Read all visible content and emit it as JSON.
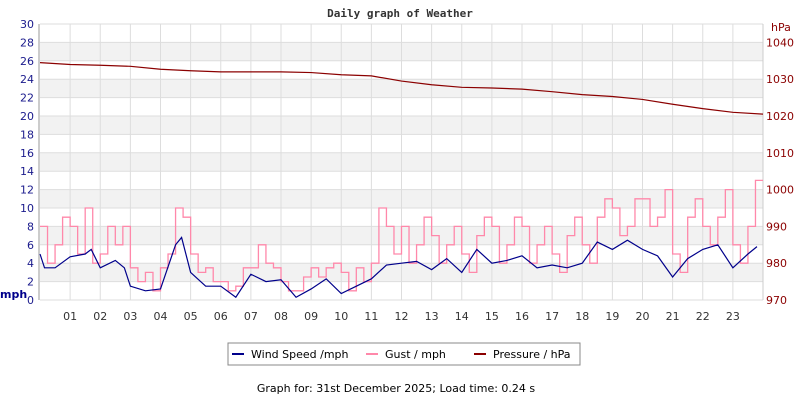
{
  "chart_data": {
    "type": "line",
    "title": "Daily graph of Weather",
    "xlabel": "",
    "x_ticks": [
      "01",
      "02",
      "03",
      "04",
      "05",
      "06",
      "07",
      "08",
      "09",
      "10",
      "11",
      "12",
      "13",
      "14",
      "15",
      "16",
      "17",
      "18",
      "19",
      "20",
      "21",
      "22",
      "23"
    ],
    "xlim": [
      0,
      24
    ],
    "y_left": {
      "label": "mph",
      "lim": [
        0,
        30
      ],
      "ticks": [
        0,
        2,
        4,
        6,
        8,
        10,
        12,
        14,
        16,
        18,
        20,
        22,
        24,
        26,
        28,
        30
      ]
    },
    "y_right": {
      "label": "hPa",
      "lim": [
        970,
        1045
      ],
      "ticks": [
        970,
        980,
        990,
        1000,
        1010,
        1020,
        1030,
        1040
      ]
    },
    "grid": true,
    "legend_position": "bottom",
    "series": [
      {
        "name": "Wind Speed /mph",
        "axis": "left",
        "color": "#00008b",
        "x": [
          0,
          0.15,
          0.5,
          1,
          1.5,
          1.7,
          2,
          2.5,
          2.8,
          3,
          3.5,
          4,
          4.5,
          4.7,
          5,
          5.5,
          6,
          6.5,
          7,
          7.5,
          8,
          8.5,
          9,
          9.5,
          10,
          10.5,
          11,
          11.5,
          12,
          12.5,
          13,
          13.5,
          14,
          14.5,
          15,
          15.5,
          16,
          16.5,
          17,
          17.5,
          18,
          18.5,
          19,
          19.5,
          20,
          20.5,
          21,
          21.5,
          22,
          22.5,
          23,
          23.5,
          23.8
        ],
        "y": [
          5,
          3.5,
          3.5,
          4.7,
          5,
          5.5,
          3.5,
          4.3,
          3.5,
          1.5,
          1,
          1.2,
          6,
          6.8,
          3,
          1.5,
          1.5,
          0.3,
          2.8,
          2,
          2.2,
          0.3,
          1.2,
          2.3,
          0.7,
          1.5,
          2.3,
          3.8,
          4,
          4.2,
          3.3,
          4.5,
          3,
          5.5,
          4,
          4.3,
          4.8,
          3.5,
          3.8,
          3.5,
          4,
          6.3,
          5.5,
          6.5,
          5.5,
          4.8,
          2.5,
          4.5,
          5.5,
          6,
          3.5,
          5,
          5.8
        ]
      },
      {
        "name": "Gust / mph",
        "axis": "left",
        "color": "#ff88aa",
        "x": [
          0,
          0.25,
          0.5,
          0.75,
          1,
          1.25,
          1.5,
          1.75,
          2,
          2.25,
          2.5,
          2.75,
          3,
          3.25,
          3.5,
          3.75,
          4,
          4.25,
          4.5,
          4.75,
          5,
          5.25,
          5.5,
          5.75,
          6,
          6.25,
          6.5,
          6.75,
          7,
          7.25,
          7.5,
          7.75,
          8,
          8.25,
          8.5,
          8.75,
          9,
          9.25,
          9.5,
          9.75,
          10,
          10.25,
          10.5,
          10.75,
          11,
          11.25,
          11.5,
          11.75,
          12,
          12.25,
          12.5,
          12.75,
          13,
          13.25,
          13.5,
          13.75,
          14,
          14.25,
          14.5,
          14.75,
          15,
          15.25,
          15.5,
          15.75,
          16,
          16.25,
          16.5,
          16.75,
          17,
          17.25,
          17.5,
          17.75,
          18,
          18.25,
          18.5,
          18.75,
          19,
          19.25,
          19.5,
          19.75,
          20,
          20.25,
          20.5,
          20.75,
          21,
          21.25,
          21.5,
          21.75,
          22,
          22.25,
          22.5,
          22.75,
          23,
          23.25,
          23.5,
          23.75
        ],
        "y": [
          8,
          4,
          6,
          9,
          8,
          5,
          10,
          4,
          5,
          8,
          6,
          8,
          3.5,
          2,
          3,
          1,
          3.5,
          5,
          10,
          9,
          5,
          3,
          3.5,
          2,
          2,
          1,
          1.5,
          3.5,
          3.5,
          6,
          4,
          3.5,
          2,
          1,
          1,
          2.5,
          3.5,
          2.5,
          3.5,
          4,
          3,
          1,
          3.5,
          2,
          4,
          10,
          8,
          5,
          8,
          4,
          6,
          9,
          7,
          4,
          6,
          8,
          5,
          3,
          7,
          9,
          8,
          4,
          6,
          9,
          8,
          4,
          6,
          8,
          5,
          3,
          7,
          9,
          6,
          4,
          9,
          11,
          10,
          7,
          8,
          11,
          11,
          8,
          9,
          12,
          5,
          3,
          9,
          11,
          8,
          6,
          9,
          12,
          6,
          4,
          8,
          13
        ]
      },
      {
        "name": "Pressure / hPa",
        "axis": "right",
        "color": "#8b0000",
        "x": [
          0,
          1,
          2,
          3,
          4,
          5,
          6,
          7,
          8,
          9,
          10,
          11,
          12,
          13,
          14,
          15,
          16,
          17,
          18,
          19,
          20,
          21,
          22,
          23,
          24
        ],
        "y": [
          1034.5,
          1034.0,
          1033.8,
          1033.5,
          1032.7,
          1032.3,
          1032.0,
          1032.0,
          1032.0,
          1031.8,
          1031.2,
          1030.9,
          1029.5,
          1028.5,
          1027.8,
          1027.6,
          1027.3,
          1026.6,
          1025.8,
          1025.3,
          1024.5,
          1023.2,
          1022.0,
          1021.0,
          1020.5
        ]
      }
    ]
  },
  "footer": "Graph for: 31st December 2025; Load time: 0.24 s"
}
